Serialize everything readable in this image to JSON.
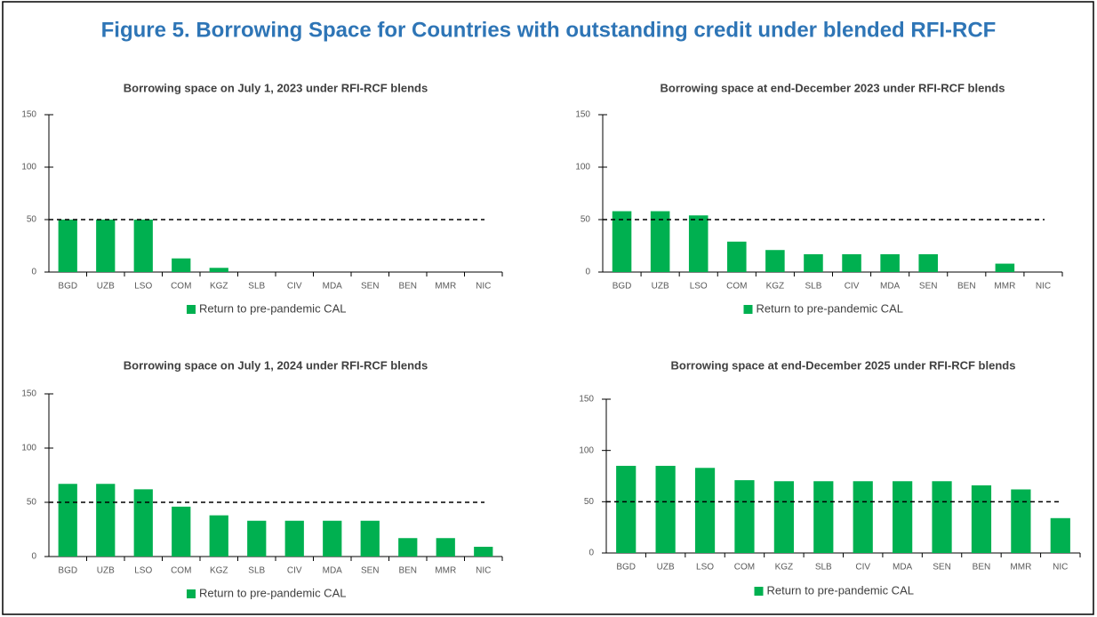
{
  "title": "Figure 5. Borrowing Space for Countries with outstanding credit under blended RFI-RCF",
  "chart_data": [
    {
      "type": "bar",
      "title": "Borrowing space on July 1, 2023 under RFI-RCF blends",
      "categories": [
        "BGD",
        "UZB",
        "LSO",
        "COM",
        "KGZ",
        "SLB",
        "CIV",
        "MDA",
        "SEN",
        "BEN",
        "MMR",
        "NIC"
      ],
      "series": [
        {
          "name": "Return to pre-pandemic CAL",
          "color": "#00b050",
          "values": [
            50,
            50,
            50,
            13,
            4,
            0,
            0,
            0,
            0,
            0,
            0,
            0
          ]
        }
      ],
      "ylim": [
        0,
        150
      ],
      "yticks": [
        0,
        50,
        100,
        150
      ],
      "reference_line": 50
    },
    {
      "type": "bar",
      "title": "Borrowing space at end-December 2023 under RFI-RCF blends",
      "categories": [
        "BGD",
        "UZB",
        "LSO",
        "COM",
        "KGZ",
        "SLB",
        "CIV",
        "MDA",
        "SEN",
        "BEN",
        "MMR",
        "NIC"
      ],
      "series": [
        {
          "name": "Return to pre-pandemic CAL",
          "color": "#00b050",
          "values": [
            58,
            58,
            54,
            29,
            21,
            17,
            17,
            17,
            17,
            0,
            8,
            0
          ]
        }
      ],
      "ylim": [
        0,
        150
      ],
      "yticks": [
        0,
        50,
        100,
        150
      ],
      "reference_line": 50
    },
    {
      "type": "bar",
      "title": "Borrowing space on July 1, 2024 under RFI-RCF blends",
      "categories": [
        "BGD",
        "UZB",
        "LSO",
        "COM",
        "KGZ",
        "SLB",
        "CIV",
        "MDA",
        "SEN",
        "BEN",
        "MMR",
        "NIC"
      ],
      "series": [
        {
          "name": "Return to pre-pandemic CAL",
          "color": "#00b050",
          "values": [
            67,
            67,
            62,
            46,
            38,
            33,
            33,
            33,
            33,
            17,
            17,
            9
          ]
        }
      ],
      "ylim": [
        0,
        150
      ],
      "yticks": [
        0,
        50,
        100,
        150
      ],
      "reference_line": 50
    },
    {
      "type": "bar",
      "title": "Borrowing space at end-December 2025 under RFI-RCF blends",
      "categories": [
        "BGD",
        "UZB",
        "LSO",
        "COM",
        "KGZ",
        "SLB",
        "CIV",
        "MDA",
        "SEN",
        "BEN",
        "MMR",
        "NIC"
      ],
      "series": [
        {
          "name": "Return to pre-pandemic CAL",
          "color": "#00b050",
          "values": [
            85,
            85,
            83,
            71,
            70,
            70,
            70,
            70,
            70,
            66,
            62,
            34
          ]
        }
      ],
      "ylim": [
        0,
        150
      ],
      "yticks": [
        0,
        50,
        100,
        150
      ],
      "reference_line": 50
    }
  ]
}
